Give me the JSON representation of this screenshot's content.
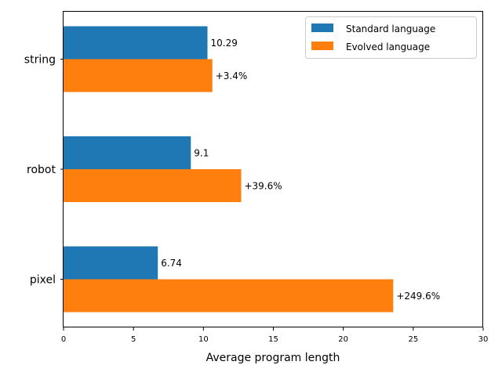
{
  "chart_data": {
    "type": "bar",
    "orientation": "horizontal",
    "categories": [
      "string",
      "robot",
      "pixel"
    ],
    "series": [
      {
        "name": "Standard language",
        "color": "#1f77b4",
        "values": [
          10.29,
          9.1,
          6.74
        ],
        "labels": [
          "10.29",
          "9.1",
          "6.74"
        ]
      },
      {
        "name": "Evolved language",
        "color": "#ff7f0e",
        "values": [
          10.64,
          12.7,
          23.57
        ],
        "labels": [
          "+3.4%",
          "+39.6%",
          "+249.6%"
        ]
      }
    ],
    "xlabel": "Average program length",
    "ylabel": "",
    "title": "",
    "xlim": [
      0,
      30
    ],
    "xticks": [
      0,
      5,
      10,
      15,
      20,
      25,
      30
    ],
    "grid": false,
    "legend_position": "top-right"
  }
}
